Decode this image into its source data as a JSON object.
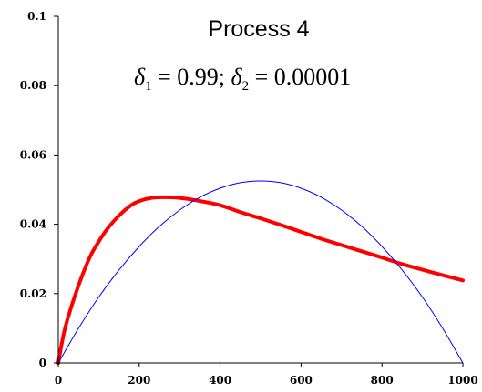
{
  "chart_data": {
    "type": "line",
    "title": "Process 4",
    "annotation": {
      "delta1_symbol": "δ",
      "delta1_sub": "1",
      "delta1_value": " = 0.99; ",
      "delta2_symbol": "δ",
      "delta2_sub": "2",
      "delta2_value": " = 0.00001"
    },
    "xlabel": "",
    "ylabel": "",
    "xlim": [
      0,
      1000
    ],
    "ylim": [
      0,
      0.1
    ],
    "x_ticks": [
      0,
      200,
      400,
      600,
      800,
      1000
    ],
    "x_tick_labels": [
      "0",
      "200",
      "400",
      "600",
      "800",
      "1000"
    ],
    "y_ticks": [
      0,
      0.02,
      0.04,
      0.06,
      0.08,
      0.1
    ],
    "y_tick_labels": [
      "0",
      "0.02",
      "0.04",
      "0.06",
      "0.08",
      "0.1"
    ],
    "grid": false,
    "legend": "none",
    "series": [
      {
        "color": "#ff0000",
        "x": [
          0,
          10,
          20,
          40,
          60,
          80,
          100,
          120,
          150,
          180,
          200,
          230,
          260,
          290,
          320,
          350,
          400,
          450,
          500,
          550,
          600,
          650,
          700,
          750,
          800,
          850,
          900,
          950,
          1000
        ],
        "y": [
          0,
          0.0065,
          0.0115,
          0.019,
          0.0255,
          0.031,
          0.035,
          0.0385,
          0.0425,
          0.0455,
          0.0467,
          0.0476,
          0.0478,
          0.0477,
          0.0473,
          0.0467,
          0.0455,
          0.0435,
          0.0417,
          0.0398,
          0.0378,
          0.0358,
          0.034,
          0.0322,
          0.0304,
          0.0285,
          0.0269,
          0.0253,
          0.0238
        ]
      },
      {
        "color": "#0000ff",
        "x": [
          0,
          50,
          100,
          150,
          200,
          250,
          300,
          350,
          400,
          450,
          500,
          550,
          600,
          650,
          700,
          750,
          800,
          850,
          900,
          950,
          1000
        ],
        "y": [
          0,
          0.01,
          0.019,
          0.0268,
          0.0336,
          0.0394,
          0.0441,
          0.0478,
          0.0504,
          0.052,
          0.0525,
          0.052,
          0.0504,
          0.0478,
          0.0441,
          0.0394,
          0.0336,
          0.0268,
          0.019,
          0.01,
          0
        ]
      }
    ]
  }
}
